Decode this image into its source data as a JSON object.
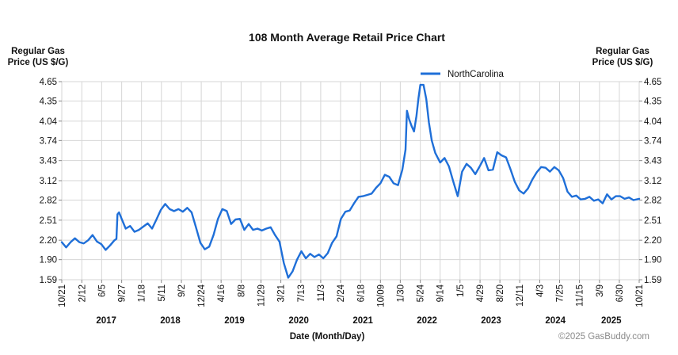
{
  "chart_data": {
    "type": "line",
    "title": "108 Month Average Retail Price Chart",
    "ylabel_left": "Regular Gas\nPrice (US $/G)",
    "ylabel_right": "Regular Gas\nPrice (US $/G)",
    "xlabel": "Date (Month/Day)",
    "legend": [
      "NorthCarolina"
    ],
    "legend_position": "top-right",
    "grid": true,
    "ylim": [
      1.59,
      4.65
    ],
    "yticks": [
      "1.59",
      "1.90",
      "2.20",
      "2.51",
      "2.82",
      "3.12",
      "3.43",
      "3.74",
      "4.04",
      "4.35",
      "4.65"
    ],
    "xlim": [
      "2016-10-21",
      "2025-10-21"
    ],
    "x_ticks": [
      {
        "date": "2016-10-21",
        "label": "10/21"
      },
      {
        "date": "2017-02-12",
        "label": "2/12"
      },
      {
        "date": "2017-06-05",
        "label": "6/5"
      },
      {
        "date": "2017-09-27",
        "label": "9/27"
      },
      {
        "date": "2018-01-18",
        "label": "1/18"
      },
      {
        "date": "2018-05-11",
        "label": "5/11"
      },
      {
        "date": "2018-09-02",
        "label": "9/2"
      },
      {
        "date": "2018-12-24",
        "label": "12/24"
      },
      {
        "date": "2019-04-16",
        "label": "4/16"
      },
      {
        "date": "2019-08-08",
        "label": "8/8"
      },
      {
        "date": "2019-11-29",
        "label": "11/29"
      },
      {
        "date": "2020-03-21",
        "label": "3/21"
      },
      {
        "date": "2020-07-13",
        "label": "7/13"
      },
      {
        "date": "2020-11-03",
        "label": "11/3"
      },
      {
        "date": "2021-02-24",
        "label": "2/24"
      },
      {
        "date": "2021-06-18",
        "label": "6/18"
      },
      {
        "date": "2021-10-09",
        "label": "10/09"
      },
      {
        "date": "2022-01-30",
        "label": "1/30"
      },
      {
        "date": "2022-05-24",
        "label": "5/24"
      },
      {
        "date": "2022-09-14",
        "label": "9/14"
      },
      {
        "date": "2023-01-05",
        "label": "1/5"
      },
      {
        "date": "2023-04-29",
        "label": "4/29"
      },
      {
        "date": "2023-08-20",
        "label": "8/20"
      },
      {
        "date": "2023-12-11",
        "label": "12/11"
      },
      {
        "date": "2024-04-03",
        "label": "4/3"
      },
      {
        "date": "2024-07-25",
        "label": "7/25"
      },
      {
        "date": "2024-11-15",
        "label": "11/15"
      },
      {
        "date": "2025-03-09",
        "label": "3/9"
      },
      {
        "date": "2025-06-30",
        "label": "6/30"
      },
      {
        "date": "2025-10-21",
        "label": "10/21"
      }
    ],
    "year_labels": [
      {
        "year": "2017",
        "date": "2017-07-01"
      },
      {
        "year": "2018",
        "date": "2018-07-01"
      },
      {
        "year": "2019",
        "date": "2019-07-01"
      },
      {
        "year": "2020",
        "date": "2020-07-01"
      },
      {
        "year": "2021",
        "date": "2021-07-01"
      },
      {
        "year": "2022",
        "date": "2022-07-01"
      },
      {
        "year": "2023",
        "date": "2023-07-01"
      },
      {
        "year": "2024",
        "date": "2024-07-01"
      },
      {
        "year": "2025",
        "date": "2025-05-15"
      }
    ],
    "series": [
      {
        "name": "NorthCarolina",
        "color": "#1f6fd8",
        "points": [
          [
            "2016-10-21",
            2.17
          ],
          [
            "2016-11-15",
            2.09
          ],
          [
            "2016-12-10",
            2.17
          ],
          [
            "2017-01-04",
            2.23
          ],
          [
            "2017-01-29",
            2.17
          ],
          [
            "2017-02-23",
            2.15
          ],
          [
            "2017-03-20",
            2.2
          ],
          [
            "2017-04-14",
            2.28
          ],
          [
            "2017-05-09",
            2.18
          ],
          [
            "2017-06-03",
            2.14
          ],
          [
            "2017-06-28",
            2.05
          ],
          [
            "2017-07-23",
            2.12
          ],
          [
            "2017-08-17",
            2.2
          ],
          [
            "2017-08-28",
            2.22
          ],
          [
            "2017-09-03",
            2.6
          ],
          [
            "2017-09-12",
            2.63
          ],
          [
            "2017-09-27",
            2.53
          ],
          [
            "2017-10-20",
            2.38
          ],
          [
            "2017-11-14",
            2.42
          ],
          [
            "2017-12-09",
            2.33
          ],
          [
            "2018-01-03",
            2.36
          ],
          [
            "2018-01-28",
            2.41
          ],
          [
            "2018-02-22",
            2.46
          ],
          [
            "2018-03-19",
            2.38
          ],
          [
            "2018-04-13",
            2.52
          ],
          [
            "2018-05-08",
            2.67
          ],
          [
            "2018-06-02",
            2.76
          ],
          [
            "2018-06-27",
            2.68
          ],
          [
            "2018-07-22",
            2.65
          ],
          [
            "2018-08-16",
            2.68
          ],
          [
            "2018-09-10",
            2.64
          ],
          [
            "2018-10-05",
            2.7
          ],
          [
            "2018-10-30",
            2.63
          ],
          [
            "2018-11-24",
            2.4
          ],
          [
            "2018-12-19",
            2.16
          ],
          [
            "2019-01-13",
            2.06
          ],
          [
            "2019-02-07",
            2.1
          ],
          [
            "2019-03-04",
            2.28
          ],
          [
            "2019-03-29",
            2.53
          ],
          [
            "2019-04-23",
            2.68
          ],
          [
            "2019-05-18",
            2.65
          ],
          [
            "2019-06-12",
            2.45
          ],
          [
            "2019-07-07",
            2.52
          ],
          [
            "2019-08-01",
            2.53
          ],
          [
            "2019-08-26",
            2.36
          ],
          [
            "2019-09-20",
            2.45
          ],
          [
            "2019-10-15",
            2.36
          ],
          [
            "2019-11-09",
            2.38
          ],
          [
            "2019-12-04",
            2.35
          ],
          [
            "2019-12-29",
            2.38
          ],
          [
            "2020-01-23",
            2.4
          ],
          [
            "2020-02-17",
            2.28
          ],
          [
            "2020-03-13",
            2.18
          ],
          [
            "2020-04-07",
            1.85
          ],
          [
            "2020-05-02",
            1.62
          ],
          [
            "2020-05-27",
            1.72
          ],
          [
            "2020-06-21",
            1.9
          ],
          [
            "2020-07-16",
            2.03
          ],
          [
            "2020-08-10",
            1.92
          ],
          [
            "2020-09-04",
            1.99
          ],
          [
            "2020-09-29",
            1.94
          ],
          [
            "2020-10-24",
            1.98
          ],
          [
            "2020-11-18",
            1.92
          ],
          [
            "2020-12-13",
            2.0
          ],
          [
            "2021-01-07",
            2.16
          ],
          [
            "2021-02-01",
            2.26
          ],
          [
            "2021-02-26",
            2.53
          ],
          [
            "2021-03-23",
            2.64
          ],
          [
            "2021-04-17",
            2.66
          ],
          [
            "2021-05-12",
            2.77
          ],
          [
            "2021-06-06",
            2.87
          ],
          [
            "2021-07-01",
            2.88
          ],
          [
            "2021-07-26",
            2.9
          ],
          [
            "2021-08-20",
            2.92
          ],
          [
            "2021-09-14",
            3.01
          ],
          [
            "2021-10-09",
            3.08
          ],
          [
            "2021-11-03",
            3.21
          ],
          [
            "2021-11-28",
            3.18
          ],
          [
            "2021-12-23",
            3.08
          ],
          [
            "2022-01-17",
            3.05
          ],
          [
            "2022-02-11",
            3.29
          ],
          [
            "2022-03-01",
            3.6
          ],
          [
            "2022-03-09",
            4.2
          ],
          [
            "2022-03-21",
            4.07
          ],
          [
            "2022-04-05",
            3.96
          ],
          [
            "2022-04-18",
            3.88
          ],
          [
            "2022-05-02",
            4.12
          ],
          [
            "2022-05-14",
            4.4
          ],
          [
            "2022-05-24",
            4.6
          ],
          [
            "2022-06-11",
            4.6
          ],
          [
            "2022-06-27",
            4.38
          ],
          [
            "2022-07-12",
            4.02
          ],
          [
            "2022-07-28",
            3.74
          ],
          [
            "2022-08-17",
            3.55
          ],
          [
            "2022-09-14",
            3.4
          ],
          [
            "2022-10-09",
            3.47
          ],
          [
            "2022-11-03",
            3.34
          ],
          [
            "2022-11-28",
            3.1
          ],
          [
            "2022-12-23",
            2.88
          ],
          [
            "2023-01-17",
            3.26
          ],
          [
            "2023-02-11",
            3.38
          ],
          [
            "2023-03-08",
            3.32
          ],
          [
            "2023-04-02",
            3.22
          ],
          [
            "2023-04-27",
            3.34
          ],
          [
            "2023-05-22",
            3.47
          ],
          [
            "2023-06-16",
            3.28
          ],
          [
            "2023-07-11",
            3.29
          ],
          [
            "2023-08-05",
            3.56
          ],
          [
            "2023-08-30",
            3.51
          ],
          [
            "2023-09-24",
            3.48
          ],
          [
            "2023-10-19",
            3.3
          ],
          [
            "2023-11-13",
            3.1
          ],
          [
            "2023-12-08",
            2.97
          ],
          [
            "2024-01-02",
            2.92
          ],
          [
            "2024-01-27",
            3.0
          ],
          [
            "2024-02-21",
            3.14
          ],
          [
            "2024-03-17",
            3.25
          ],
          [
            "2024-04-11",
            3.33
          ],
          [
            "2024-05-06",
            3.32
          ],
          [
            "2024-05-31",
            3.26
          ],
          [
            "2024-06-25",
            3.33
          ],
          [
            "2024-07-20",
            3.28
          ],
          [
            "2024-08-14",
            3.16
          ],
          [
            "2024-09-08",
            2.95
          ],
          [
            "2024-10-03",
            2.87
          ],
          [
            "2024-10-28",
            2.89
          ],
          [
            "2024-11-22",
            2.83
          ],
          [
            "2024-12-17",
            2.84
          ],
          [
            "2025-01-11",
            2.87
          ],
          [
            "2025-02-05",
            2.81
          ],
          [
            "2025-03-02",
            2.83
          ],
          [
            "2025-03-27",
            2.77
          ],
          [
            "2025-04-21",
            2.91
          ],
          [
            "2025-05-16",
            2.83
          ],
          [
            "2025-06-10",
            2.88
          ],
          [
            "2025-07-05",
            2.88
          ],
          [
            "2025-07-30",
            2.84
          ],
          [
            "2025-08-24",
            2.86
          ],
          [
            "2025-09-18",
            2.82
          ],
          [
            "2025-10-21",
            2.84
          ]
        ]
      }
    ]
  },
  "footer": {
    "copyright": "©2025 GasBuddy.com"
  }
}
